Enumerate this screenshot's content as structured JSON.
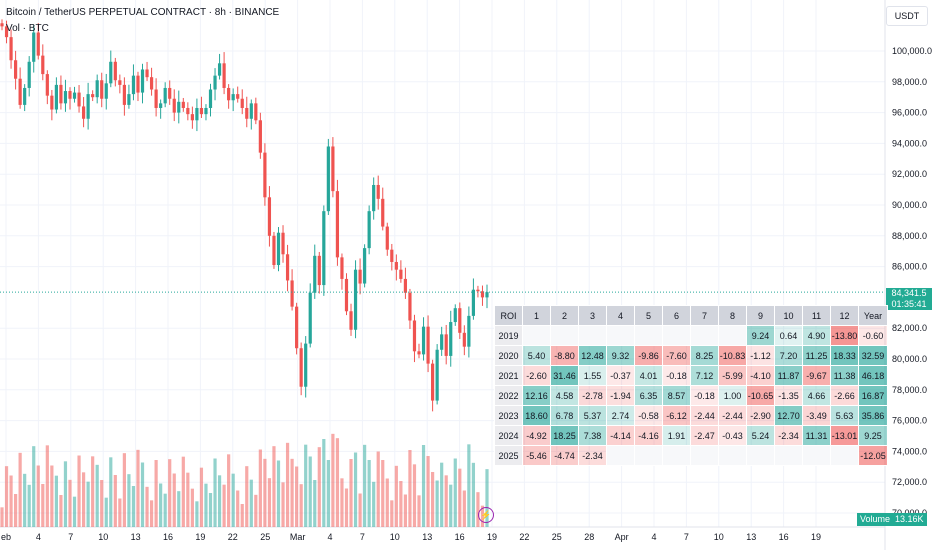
{
  "header": {
    "symbol_title": "Bitcoin / TetherUS PERPETUAL CONTRACT · 8h · BINANCE",
    "volume_label": "Vol · BTC"
  },
  "currency_button": "USDT",
  "last_price": "84,341.5",
  "countdown": "01:35:41",
  "volume_tag": {
    "label": "Volume",
    "value": "13.16K"
  },
  "chart_data": {
    "type": "candlestick",
    "y_axis_labels": [
      "100,000.0",
      "98,000.0",
      "96,000.0",
      "94,000.0",
      "92,000.0",
      "90,000.0",
      "88,000.0",
      "86,000.0",
      "82,000.0",
      "80,000.0",
      "78,000.0",
      "76,000.0",
      "74,000.0",
      "72,000.0",
      "70,000.0"
    ],
    "x_axis_labels": [
      "eb",
      "4",
      "7",
      "10",
      "13",
      "16",
      "19",
      "22",
      "25",
      "Mar",
      "4",
      "7",
      "10",
      "13",
      "16",
      "19",
      "22",
      "25",
      "28",
      "Apr",
      "4",
      "7",
      "10",
      "13",
      "16",
      "19"
    ],
    "ylim": [
      69500,
      103000
    ],
    "last_price": 84341.5,
    "closes": [
      101600,
      100900,
      99400,
      98200,
      96500,
      97600,
      99300,
      101200,
      99700,
      98500,
      97100,
      96200,
      97800,
      96600,
      97400,
      96900,
      97300,
      96400,
      95600,
      97200,
      97000,
      98100,
      96900,
      97900,
      99300,
      98100,
      97800,
      96500,
      97200,
      98400,
      97300,
      98800,
      98300,
      97500,
      96300,
      96600,
      97600,
      96900,
      96000,
      96700,
      96300,
      95900,
      95500,
      96300,
      95900,
      96300,
      97500,
      98400,
      99200,
      97600,
      96800,
      97200,
      96900,
      96300,
      95600,
      96600,
      95500,
      93400,
      90500,
      88000,
      86100,
      88200,
      86800,
      85100,
      83400,
      80700,
      78200,
      81000,
      84300,
      86700,
      84800,
      89600,
      93800,
      90900,
      86600,
      85200,
      83100,
      81900,
      85800,
      84900,
      87200,
      89600,
      91300,
      90400,
      88600,
      87100,
      86300,
      85800,
      85200,
      84300,
      82500,
      80500,
      80300,
      82100,
      79700,
      77300,
      80600,
      81600,
      80200,
      82400,
      83300,
      81700,
      80800,
      82800,
      84500,
      84400,
      84000,
      84341.5
    ],
    "roi_table": {
      "columns": [
        "ROI",
        "1",
        "2",
        "3",
        "4",
        "5",
        "6",
        "7",
        "8",
        "9",
        "10",
        "11",
        "12",
        "Year"
      ],
      "rows": [
        {
          "year": "2019",
          "values": [
            "",
            "",
            "",
            "",
            "",
            "",
            "",
            "",
            "9.24",
            "0.64",
            "4.90",
            "-13.80",
            "-0.60"
          ]
        },
        {
          "year": "2020",
          "values": [
            "5.40",
            "-8.80",
            "12.48",
            "9.32",
            "-9.86",
            "-7.60",
            "8.25",
            "-10.83",
            "-1.12",
            "7.20",
            "11.25",
            "18.33",
            "32.59"
          ]
        },
        {
          "year": "2021",
          "values": [
            "-2.60",
            "31.46",
            "1.55",
            "-0.37",
            "4.01",
            "-0.18",
            "7.12",
            "-5.99",
            "-4.10",
            "11.87",
            "-9.67",
            "11.38",
            "46.18"
          ]
        },
        {
          "year": "2022",
          "values": [
            "12.16",
            "4.58",
            "-2.78",
            "-1.94",
            "6.35",
            "8.57",
            "-0.18",
            "1.00",
            "-10.65",
            "-1.35",
            "4.66",
            "-2.66",
            "16.87"
          ]
        },
        {
          "year": "2023",
          "values": [
            "18.60",
            "6.78",
            "5.37",
            "2.74",
            "-0.58",
            "-6.12",
            "-2.44",
            "-2.44",
            "-2.90",
            "12.70",
            "-3.49",
            "5.63",
            "35.86"
          ]
        },
        {
          "year": "2024",
          "values": [
            "-4.92",
            "18.25",
            "7.38",
            "-4.14",
            "-4.16",
            "1.91",
            "-2.47",
            "-0.43",
            "5.24",
            "-2.34",
            "11.31",
            "-13.01",
            "9.25"
          ]
        },
        {
          "year": "2025",
          "values": [
            "-5.46",
            "-4.74",
            "-2.34",
            "",
            "",
            "",
            "",
            "",
            "",
            "",
            "",
            "",
            "-12.05"
          ]
        }
      ]
    }
  },
  "colors": {
    "up": "#26a69a",
    "down": "#ef5350",
    "grid": "#f0f3fa",
    "text": "#131722"
  }
}
